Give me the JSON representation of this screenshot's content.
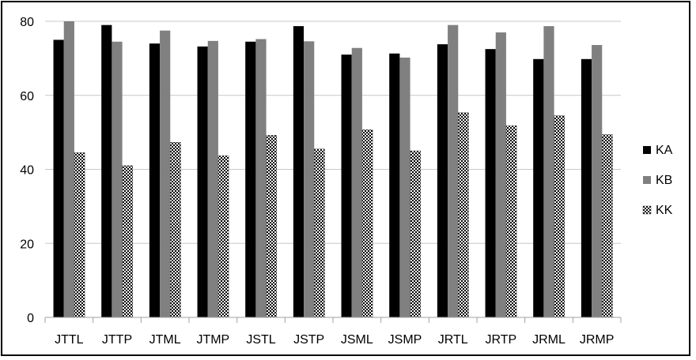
{
  "chart_data": {
    "type": "bar",
    "categories": [
      "JTTL",
      "JTTP",
      "JTML",
      "JTMP",
      "JSTL",
      "JSTP",
      "JSML",
      "JSMP",
      "JRTL",
      "JRTP",
      "JRML",
      "JRMP"
    ],
    "series": [
      {
        "name": "KA",
        "color": "#000000",
        "pattern": "solid",
        "values": [
          75.0,
          79.0,
          74.0,
          73.2,
          74.5,
          78.7,
          71.0,
          71.3,
          73.8,
          72.5,
          69.8,
          69.8
        ]
      },
      {
        "name": "KB",
        "color": "#808080",
        "pattern": "solid",
        "values": [
          80.0,
          74.5,
          77.5,
          74.7,
          75.2,
          74.6,
          72.8,
          70.2,
          79.0,
          77.0,
          78.7,
          73.6
        ]
      },
      {
        "name": "KK",
        "color": "#ffffff",
        "pattern": "checkerboard",
        "values": [
          44.5,
          41.0,
          47.3,
          43.7,
          49.2,
          45.5,
          50.7,
          45.0,
          55.3,
          51.8,
          54.5,
          49.4
        ]
      }
    ],
    "ylim": [
      0,
      80
    ],
    "yticks": [
      "0",
      "20",
      "40",
      "60",
      "80"
    ],
    "grid": true,
    "legend_position": "right"
  }
}
